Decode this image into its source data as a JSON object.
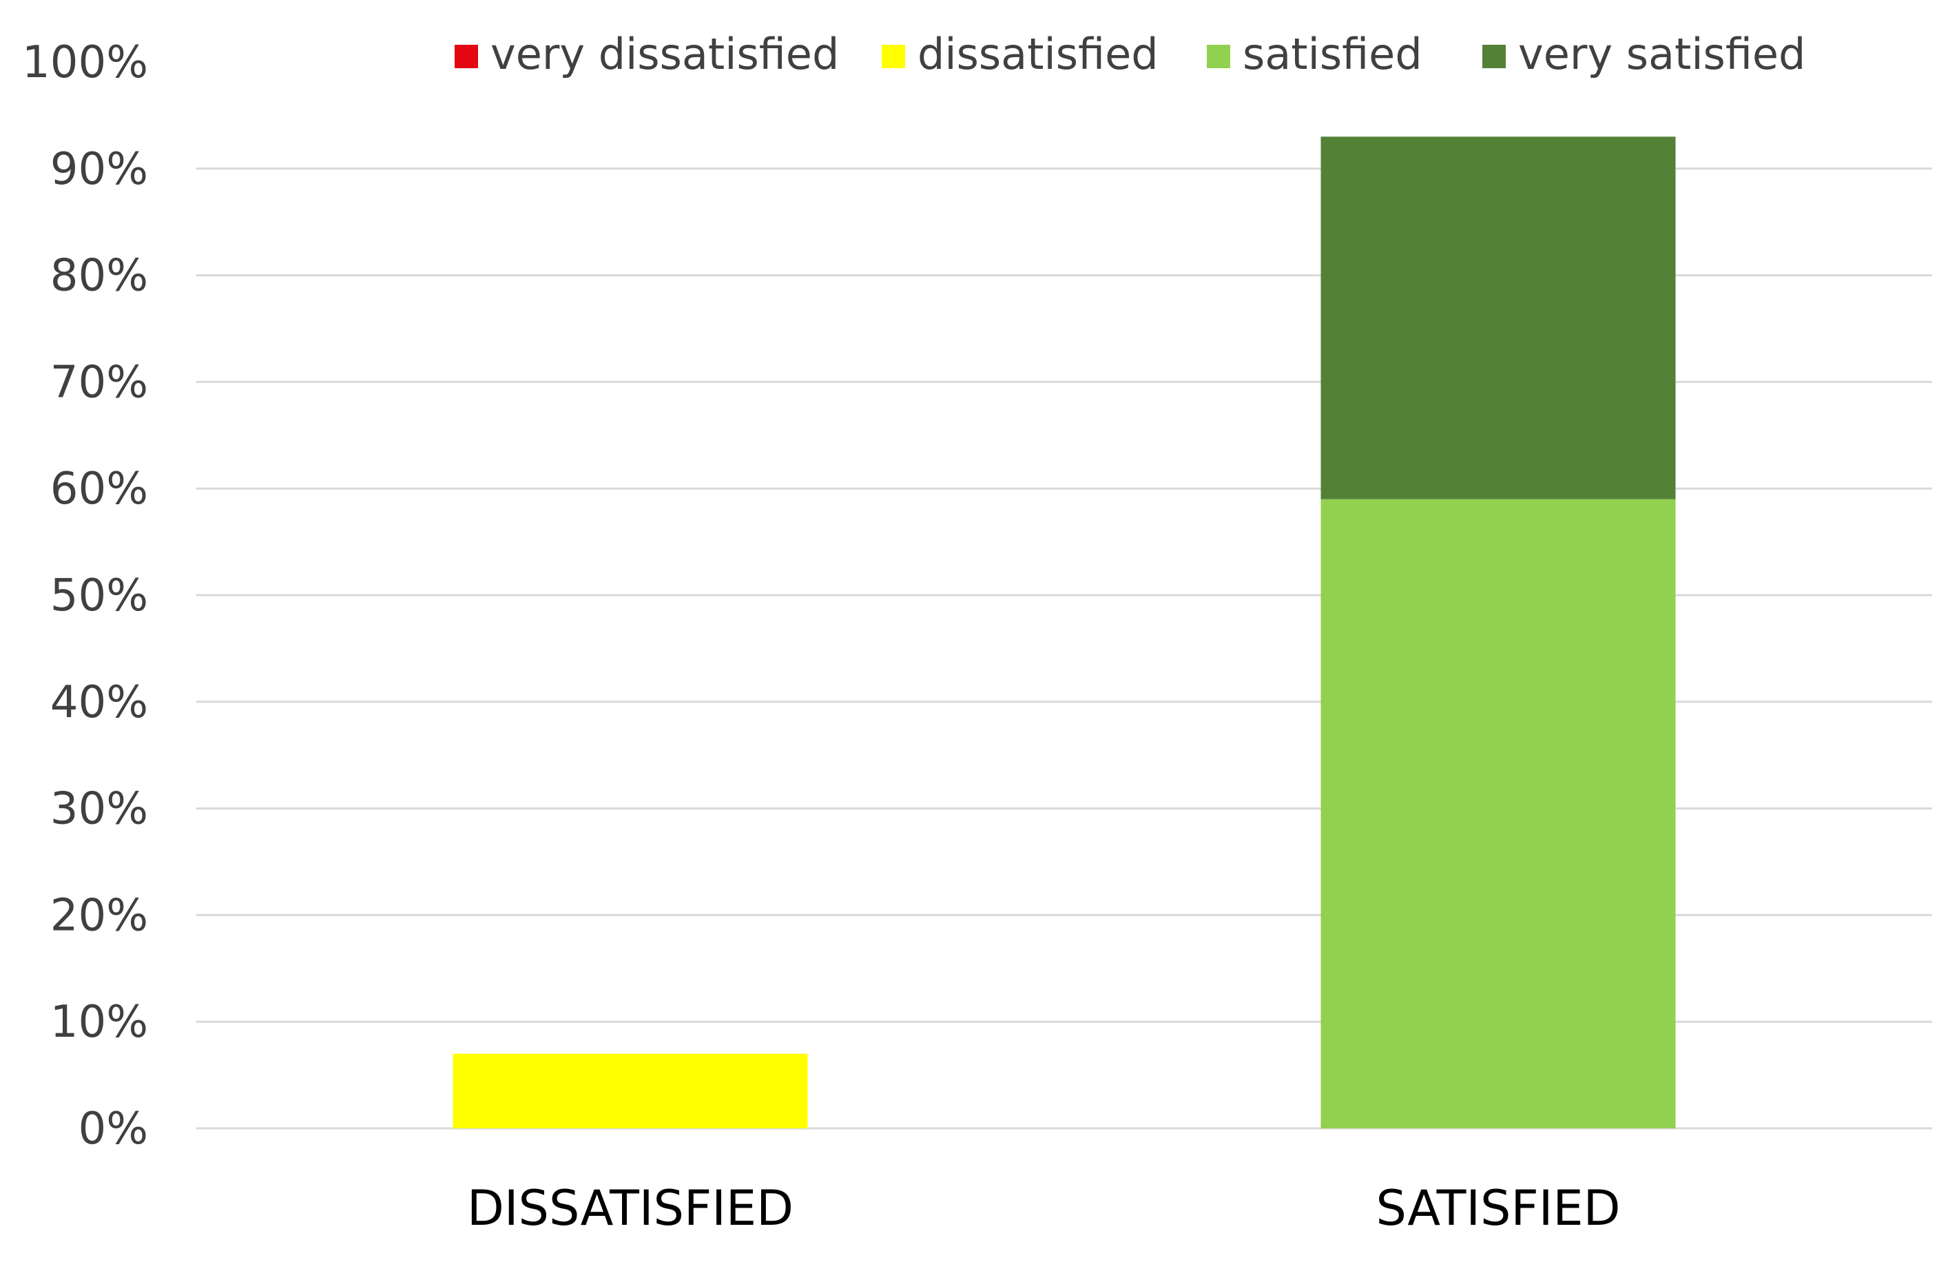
{
  "chart_data": {
    "type": "bar",
    "stacked": true,
    "categories": [
      "DISSATISFIED",
      "SATISFIED"
    ],
    "series": [
      {
        "name": "very dissatisfied",
        "color": "#e30613",
        "values": [
          0,
          0
        ]
      },
      {
        "name": "dissatisfied",
        "color": "#ffff00",
        "values": [
          7,
          0
        ]
      },
      {
        "name": "satisfied",
        "color": "#92d050",
        "values": [
          0,
          59
        ]
      },
      {
        "name": "very satisfied",
        "color": "#538135",
        "values": [
          0,
          34
        ]
      }
    ],
    "ylim": [
      0,
      100
    ],
    "yticks": [
      "0%",
      "10%",
      "20%",
      "30%",
      "40%",
      "50%",
      "60%",
      "70%",
      "80%",
      "90%",
      "100%"
    ],
    "grid": true,
    "legend_position": "top"
  }
}
